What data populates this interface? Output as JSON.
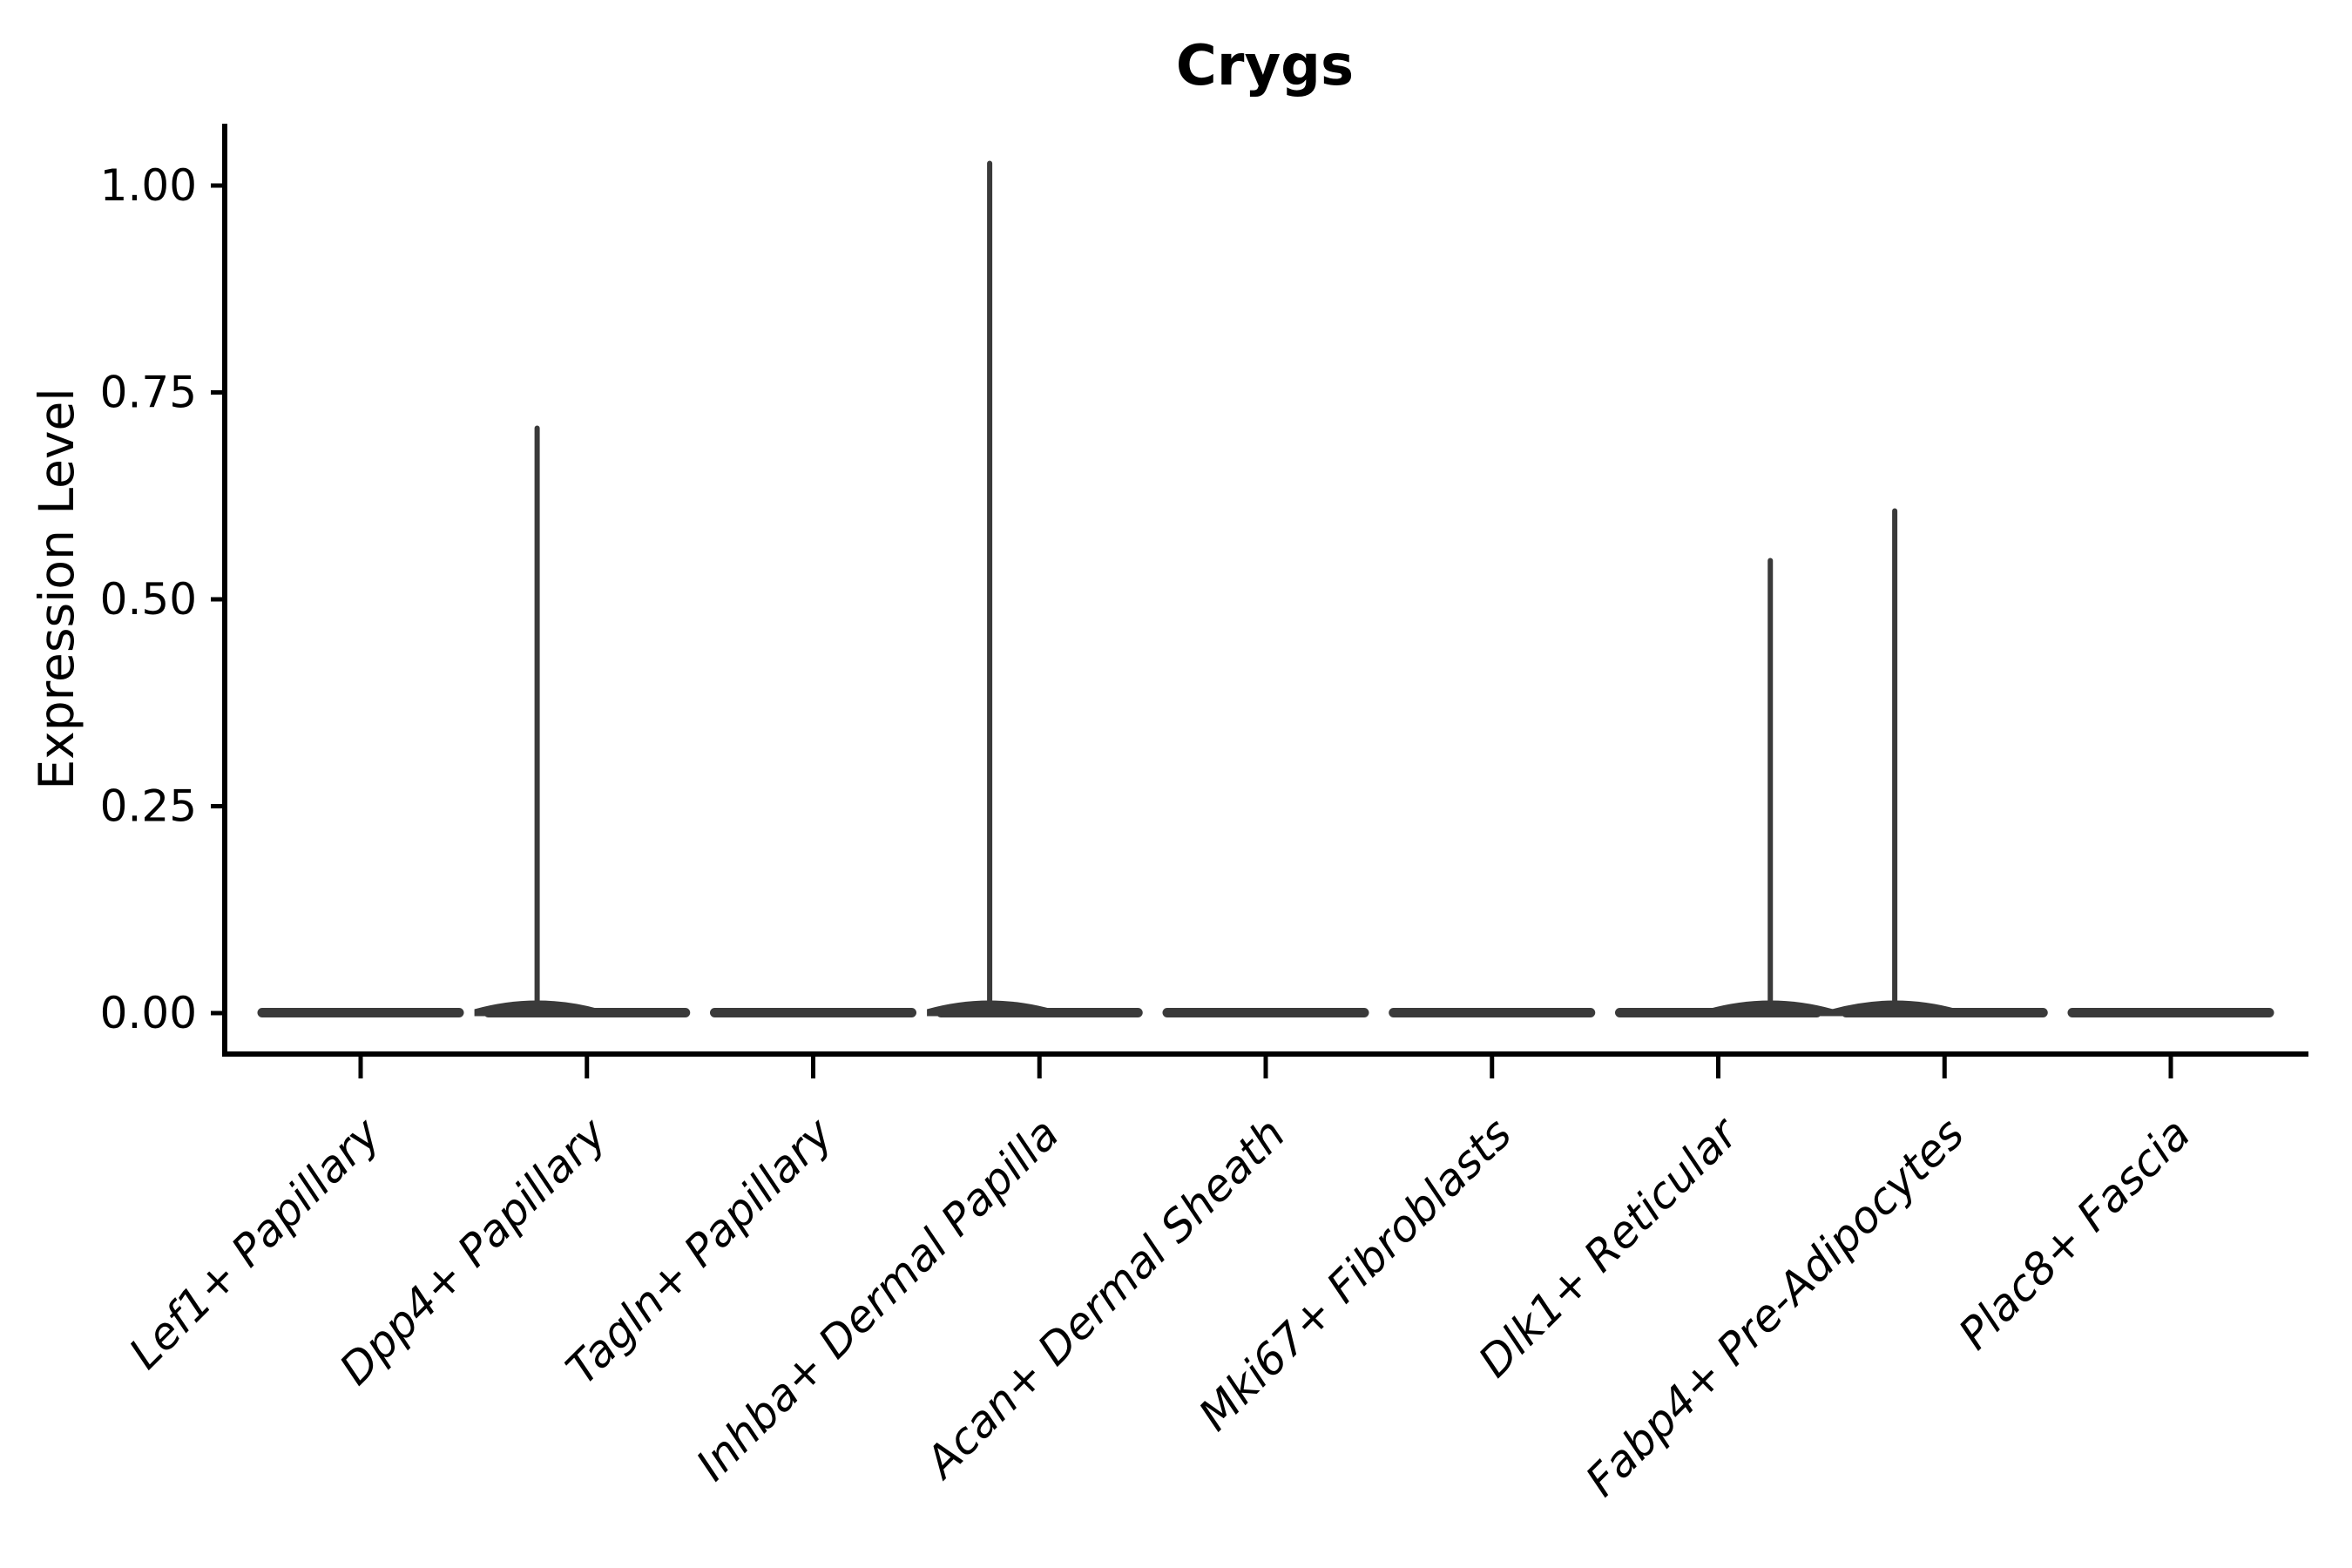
{
  "chart": {
    "title": "Crygs",
    "ylabel": "Expression Level"
  },
  "colors": {
    "violin": "#3a3a3a",
    "axis": "#000000",
    "text": "#000000",
    "background": "#ffffff"
  },
  "chart_data": {
    "type": "violin",
    "title": "Crygs",
    "xlabel": "",
    "ylabel": "Expression Level",
    "ylim": [
      0,
      1.075
    ],
    "grid": false,
    "legend": false,
    "y_ticks": [
      {
        "value": 0.0,
        "label": "0.00"
      },
      {
        "value": 0.25,
        "label": "0.25"
      },
      {
        "value": 0.5,
        "label": "0.50"
      },
      {
        "value": 0.75,
        "label": "0.75"
      },
      {
        "value": 1.0,
        "label": "1.00"
      }
    ],
    "categories": [
      {
        "label": "Lef1+ Papillary",
        "baseline": 0,
        "max": 0,
        "spike_offset": 0
      },
      {
        "label": "Dpp4+ Papillary",
        "baseline": 0,
        "max": 0.71,
        "spike_offset": -0.22
      },
      {
        "label": "Tagln+ Papillary",
        "baseline": 0,
        "max": 0,
        "spike_offset": 0
      },
      {
        "label": "Inhba+ Dermal Papilla",
        "baseline": 0,
        "max": 1.03,
        "spike_offset": -0.22
      },
      {
        "label": "Acan+ Dermal Sheath",
        "baseline": 0,
        "max": 0,
        "spike_offset": 0
      },
      {
        "label": "Mki67+ Fibroblasts",
        "baseline": 0,
        "max": 0,
        "spike_offset": 0
      },
      {
        "label": "Dlk1+ Reticular",
        "baseline": 0,
        "max": 0.55,
        "spike_offset": 0.23
      },
      {
        "label": "Fabp4+ Pre-Adipocytes",
        "baseline": 0,
        "max": 0.61,
        "spike_offset": -0.22
      },
      {
        "label": "Plac8+ Fascia",
        "baseline": 0,
        "max": 0,
        "spike_offset": 0
      }
    ]
  }
}
